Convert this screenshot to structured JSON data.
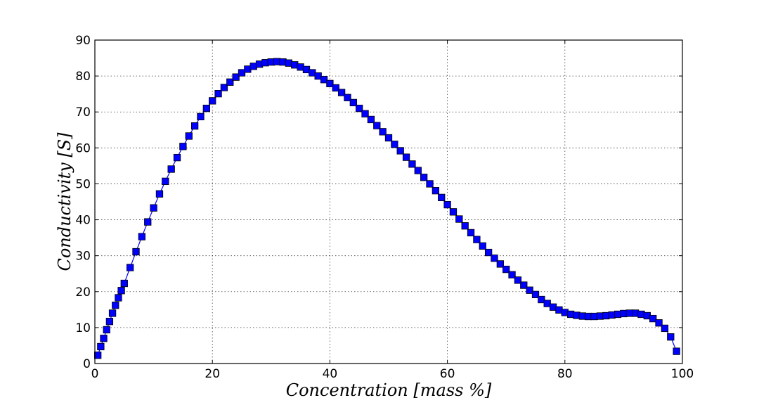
{
  "chart_data": {
    "type": "line",
    "title": "",
    "xlabel": "Concentration [mass %]",
    "ylabel": "Conductivity [S]",
    "xlim": [
      0,
      100
    ],
    "ylim": [
      0,
      90
    ],
    "x_ticks": [
      "0",
      "20",
      "40",
      "60",
      "80",
      "100"
    ],
    "y_ticks": [
      "0",
      "10",
      "20",
      "30",
      "40",
      "50",
      "60",
      "70",
      "80",
      "90"
    ],
    "grid": true,
    "marker": "square",
    "color": "#0000ff",
    "series": [
      {
        "x": [
          0.5,
          1,
          1.5,
          2,
          2.5,
          3,
          3.5,
          4,
          4.5,
          5,
          6,
          7,
          8,
          9,
          10,
          11,
          12,
          13,
          14,
          15,
          16,
          17,
          18,
          19,
          20,
          21,
          22,
          23,
          24,
          25,
          26,
          27,
          28,
          29,
          30,
          31,
          32,
          33,
          34,
          35,
          36,
          37,
          38,
          39,
          40,
          41,
          42,
          43,
          44,
          45,
          46,
          47,
          48,
          49,
          50,
          51,
          52,
          53,
          54,
          55,
          56,
          57,
          58,
          59,
          60,
          61,
          62,
          63,
          64,
          65,
          66,
          67,
          68,
          69,
          70,
          71,
          72,
          73,
          74,
          75,
          76,
          77,
          78,
          79,
          80,
          81,
          82,
          83,
          84,
          85,
          86,
          87,
          88,
          89,
          90,
          91,
          92,
          93,
          94,
          95,
          96,
          97,
          98,
          99
        ],
        "y": [
          2.3,
          4.7,
          7.0,
          9.4,
          11.7,
          14.0,
          16.2,
          18.3,
          20.3,
          22.3,
          26.7,
          31.1,
          35.3,
          39.4,
          43.3,
          47.2,
          50.7,
          54.1,
          57.3,
          60.4,
          63.3,
          66.1,
          68.7,
          71.0,
          73.1,
          75.1,
          76.8,
          78.3,
          79.7,
          80.9,
          81.9,
          82.7,
          83.3,
          83.7,
          83.9,
          84.0,
          83.9,
          83.6,
          83.1,
          82.5,
          81.8,
          80.9,
          80.0,
          79.0,
          77.9,
          76.7,
          75.4,
          74.0,
          72.6,
          71.0,
          69.5,
          67.9,
          66.2,
          64.5,
          62.8,
          61.0,
          59.2,
          57.4,
          55.5,
          53.7,
          51.8,
          50.0,
          48.1,
          46.2,
          44.2,
          42.2,
          40.2,
          38.3,
          36.4,
          34.5,
          32.7,
          30.9,
          29.3,
          27.7,
          26.2,
          24.7,
          23.2,
          21.8,
          20.4,
          19.2,
          17.8,
          16.7,
          15.7,
          14.9,
          14.2,
          13.7,
          13.4,
          13.2,
          13.1,
          13.1,
          13.2,
          13.3,
          13.5,
          13.7,
          13.9,
          14.0,
          14.0,
          13.7,
          13.3,
          12.5,
          11.3,
          9.8,
          7.4,
          3.4
        ]
      }
    ]
  }
}
